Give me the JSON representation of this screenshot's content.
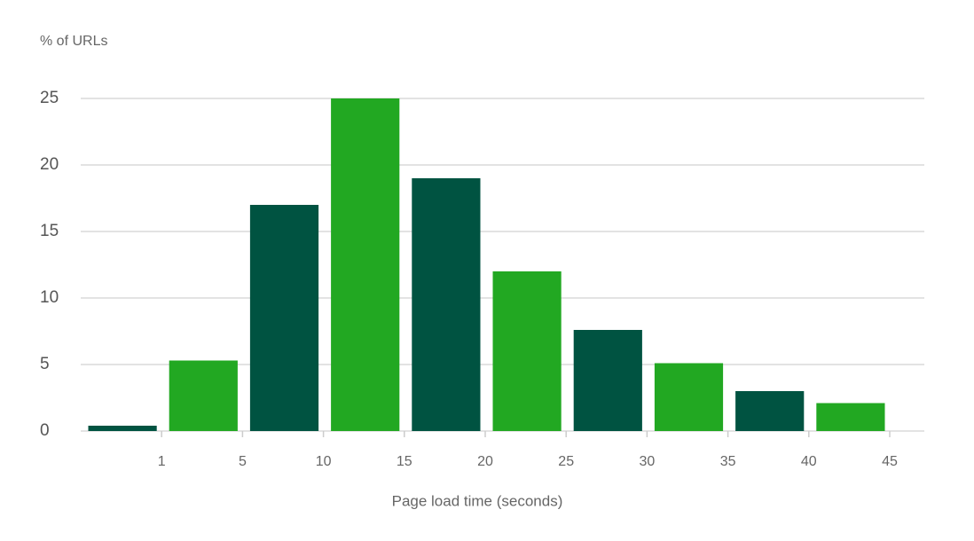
{
  "chart_data": {
    "type": "bar",
    "y_label": "% of URLs",
    "x_label": "Page load time (seconds)",
    "categories": [
      1,
      5,
      10,
      15,
      20,
      25,
      30,
      35,
      40,
      45
    ],
    "values": [
      0.4,
      5.3,
      17,
      25,
      19,
      12,
      7.6,
      5.1,
      3,
      2.1
    ],
    "colors": [
      "#005341",
      "#22a822",
      "#005341",
      "#22a822",
      "#005341",
      "#22a822",
      "#005341",
      "#22a822",
      "#005341",
      "#22a822"
    ],
    "ylim": [
      0,
      25
    ],
    "yticks": [
      0,
      5,
      10,
      15,
      20,
      25
    ],
    "grid": true
  }
}
